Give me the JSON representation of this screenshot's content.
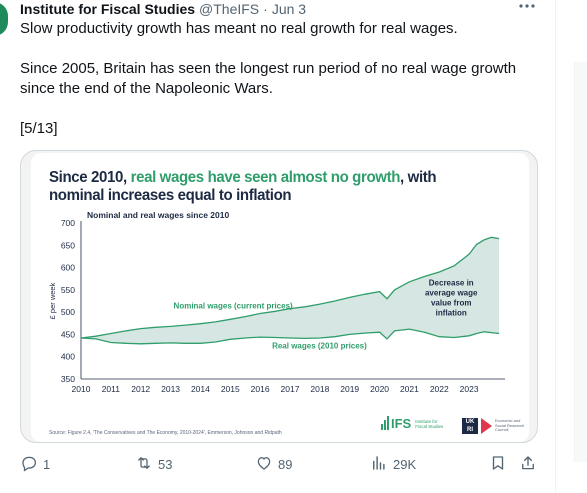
{
  "tweet": {
    "author_name": "Institute for Fiscal Studies",
    "author_handle": "@TheIFS",
    "separator": "·",
    "date": "Jun 3",
    "more_icon": "more-horizontal-icon",
    "text": {
      "line1": "Slow productivity growth has meant no real growth for real wages.",
      "line2": "Since 2005, Britain has seen the longest run period of no real wage growth since the end of the Napoleonic Wars.",
      "line3": "[5/13]"
    }
  },
  "infographic": {
    "title_prefix": "Since 2010, ",
    "title_accent": "real wages have seen almost no growth",
    "title_suffix": ", with nominal increases equal to inflation",
    "source_text": "Source: Figure 2.4, 'The Conservatives and The Economy, 2010-2024', Emmerson, Johnson and Ridpath",
    "ifs_logo_text": "IFS",
    "ifs_logo_subtext": "Institute for\nFiscal Studies",
    "esrc_logo_mark": "UK RI",
    "esrc_logo_text": "Economic and Social Research Council"
  },
  "chart_data": {
    "type": "area",
    "title": "Nominal and real wages since 2010",
    "xlabel": "",
    "ylabel": "£ per week",
    "xlim": [
      2010,
      2024
    ],
    "ylim": [
      350,
      700
    ],
    "yticks": [
      350,
      400,
      450,
      500,
      550,
      600,
      650,
      700
    ],
    "xticks": [
      2010,
      2011,
      2012,
      2013,
      2014,
      2015,
      2016,
      2017,
      2018,
      2019,
      2020,
      2021,
      2022,
      2023
    ],
    "grid": false,
    "legend": "none",
    "colors": {
      "nominal": "#2f9e6b",
      "real": "#2f9e6b",
      "gap_fill": "#d6e6e2",
      "axis": "#1d2a44"
    },
    "series": [
      {
        "name": "Nominal wages (current prices)",
        "x": [
          2010,
          2010.5,
          2011,
          2011.5,
          2012,
          2012.5,
          2013,
          2013.5,
          2014,
          2014.5,
          2015,
          2015.5,
          2016,
          2016.5,
          2017,
          2017.5,
          2018,
          2018.5,
          2019,
          2019.5,
          2020,
          2020.25,
          2020.5,
          2021,
          2021.5,
          2022,
          2022.5,
          2023,
          2023.25,
          2023.5,
          2023.75,
          2024
        ],
        "values": [
          442,
          446,
          452,
          458,
          463,
          466,
          468,
          471,
          474,
          478,
          484,
          490,
          497,
          502,
          508,
          512,
          518,
          525,
          533,
          540,
          546,
          530,
          550,
          568,
          580,
          590,
          604,
          630,
          652,
          662,
          668,
          665
        ]
      },
      {
        "name": "Real wages (2010 prices)",
        "x": [
          2010,
          2010.5,
          2011,
          2011.5,
          2012,
          2012.5,
          2013,
          2013.5,
          2014,
          2014.5,
          2015,
          2015.5,
          2016,
          2016.5,
          2017,
          2017.5,
          2018,
          2018.5,
          2019,
          2019.5,
          2020,
          2020.25,
          2020.5,
          2021,
          2021.5,
          2022,
          2022.5,
          2023,
          2023.25,
          2023.5,
          2023.75,
          2024
        ],
        "values": [
          442,
          440,
          432,
          430,
          429,
          430,
          431,
          430,
          430,
          433,
          439,
          442,
          444,
          443,
          442,
          441,
          442,
          445,
          450,
          453,
          455,
          440,
          458,
          462,
          455,
          445,
          443,
          447,
          452,
          456,
          454,
          452
        ]
      }
    ],
    "annotations": [
      {
        "text": "Decrease in average wage value from inflation",
        "x": 2022.4,
        "y": 560
      }
    ]
  },
  "actions": {
    "reply": {
      "icon": "reply-icon",
      "count": "1"
    },
    "retweet": {
      "icon": "retweet-icon",
      "count": "53"
    },
    "like": {
      "icon": "heart-icon",
      "count": "89"
    },
    "views": {
      "icon": "views-icon",
      "count": "29K"
    },
    "bookmark": {
      "icon": "bookmark-icon"
    },
    "share": {
      "icon": "share-icon"
    }
  }
}
